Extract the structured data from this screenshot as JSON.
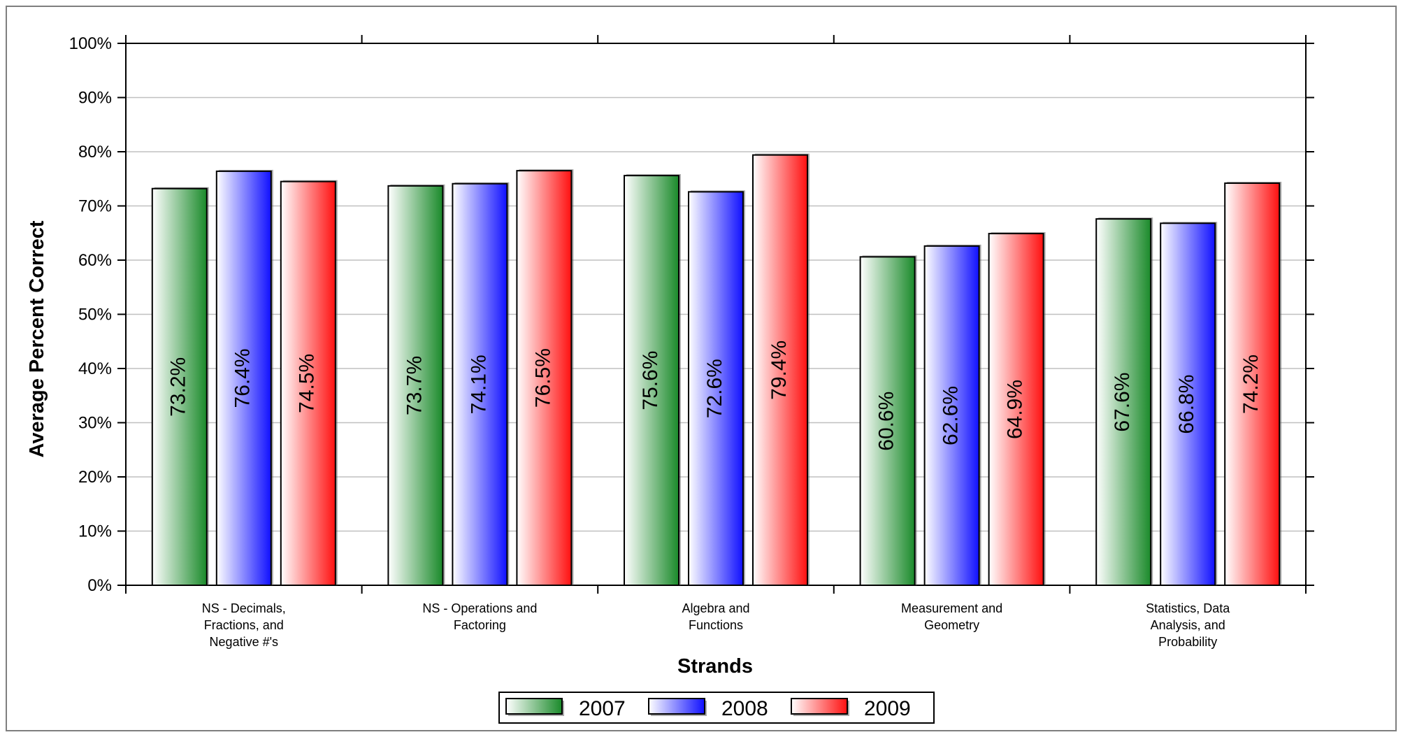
{
  "chart_data": {
    "type": "bar",
    "title": "",
    "xlabel": "Strands",
    "ylabel": "Average Percent Correct",
    "ylim": [
      0,
      100
    ],
    "yticks": [
      "0%",
      "10%",
      "20%",
      "30%",
      "40%",
      "50%",
      "60%",
      "70%",
      "80%",
      "90%",
      "100%"
    ],
    "grid": true,
    "legend_position": "bottom",
    "categories": [
      [
        "NS - Decimals,",
        "Fractions, and",
        "Negative #'s"
      ],
      [
        "NS - Operations and",
        "Factoring"
      ],
      [
        "Algebra and",
        "Functions"
      ],
      [
        "Measurement and",
        "Geometry"
      ],
      [
        "Statistics, Data",
        "Analysis, and",
        "Probability"
      ]
    ],
    "series": [
      {
        "name": "2007",
        "color": "#1a8a2a",
        "values": [
          73.2,
          73.7,
          75.6,
          60.6,
          67.6
        ],
        "labels": [
          "73.2%",
          "73.7%",
          "75.6%",
          "60.6%",
          "67.6%"
        ]
      },
      {
        "name": "2008",
        "color": "#1010ff",
        "values": [
          76.4,
          74.1,
          72.6,
          62.6,
          66.8
        ],
        "labels": [
          "76.4%",
          "74.1%",
          "72.6%",
          "62.6%",
          "66.8%"
        ]
      },
      {
        "name": "2009",
        "color": "#ff1010",
        "values": [
          74.5,
          76.5,
          79.4,
          64.9,
          74.2
        ],
        "labels": [
          "74.5%",
          "76.5%",
          "79.4%",
          "64.9%",
          "74.2%"
        ]
      }
    ]
  }
}
